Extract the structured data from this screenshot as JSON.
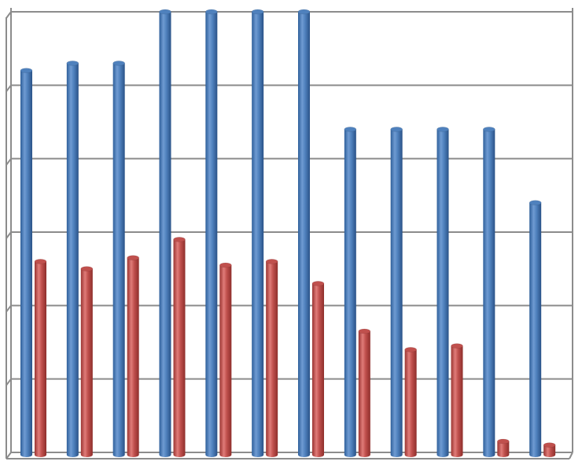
{
  "chart_data": {
    "type": "bar",
    "style": "3d-cylinder",
    "title": "",
    "xlabel": "",
    "ylabel": "",
    "ylim": [
      0,
      6
    ],
    "grid": true,
    "legend": "none",
    "categories": [
      "",
      "",
      "",
      "",
      "",
      "",
      "",
      "",
      "",
      "",
      "",
      ""
    ],
    "series": [
      {
        "color": "#4f81bd",
        "values": [
          5.2,
          5.3,
          5.3,
          6.0,
          6.0,
          6.0,
          6.0,
          4.4,
          4.4,
          4.4,
          4.4,
          3.4
        ]
      },
      {
        "color": "#c0504d",
        "values": [
          2.6,
          2.5,
          2.65,
          2.9,
          2.55,
          2.6,
          2.3,
          1.65,
          1.4,
          1.45,
          0.15,
          0.1
        ]
      }
    ]
  }
}
